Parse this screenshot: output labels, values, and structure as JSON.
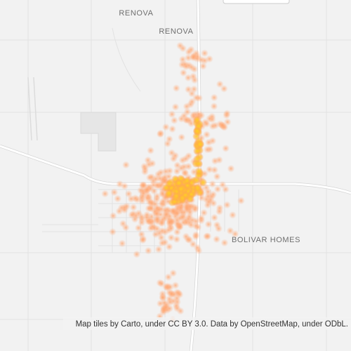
{
  "labels": [
    "RENOVA",
    "RENOVA",
    "BOLIVAR HOMES"
  ],
  "attribution": "Map tiles by Carto, under CC BY 3.0. Data by OpenStreetMap, under ODbL."
}
